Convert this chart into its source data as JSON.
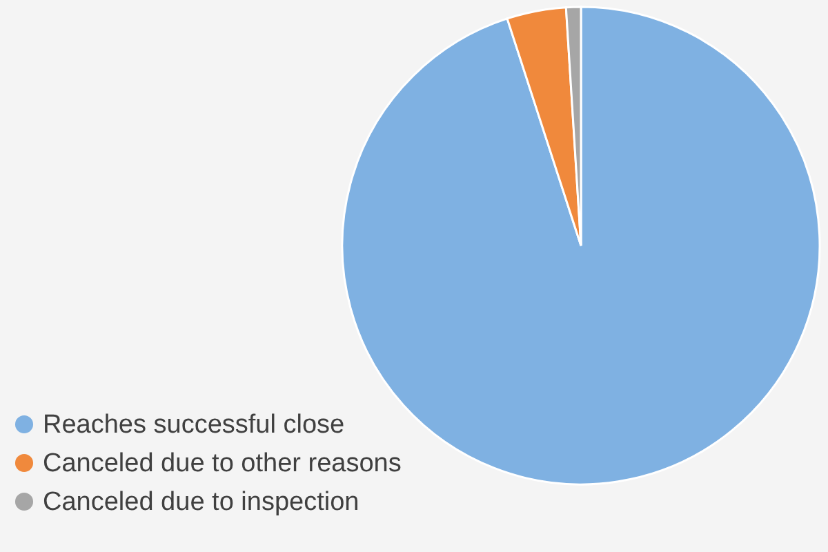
{
  "chart_data": {
    "type": "pie",
    "categories": [
      "Reaches successful close",
      "Canceled due to other reasons",
      "Canceled due to inspection"
    ],
    "values": [
      95,
      4,
      1
    ],
    "colors": [
      "#7fb1e2",
      "#f0893c",
      "#a6a6a6"
    ],
    "legend": "bottom left"
  }
}
